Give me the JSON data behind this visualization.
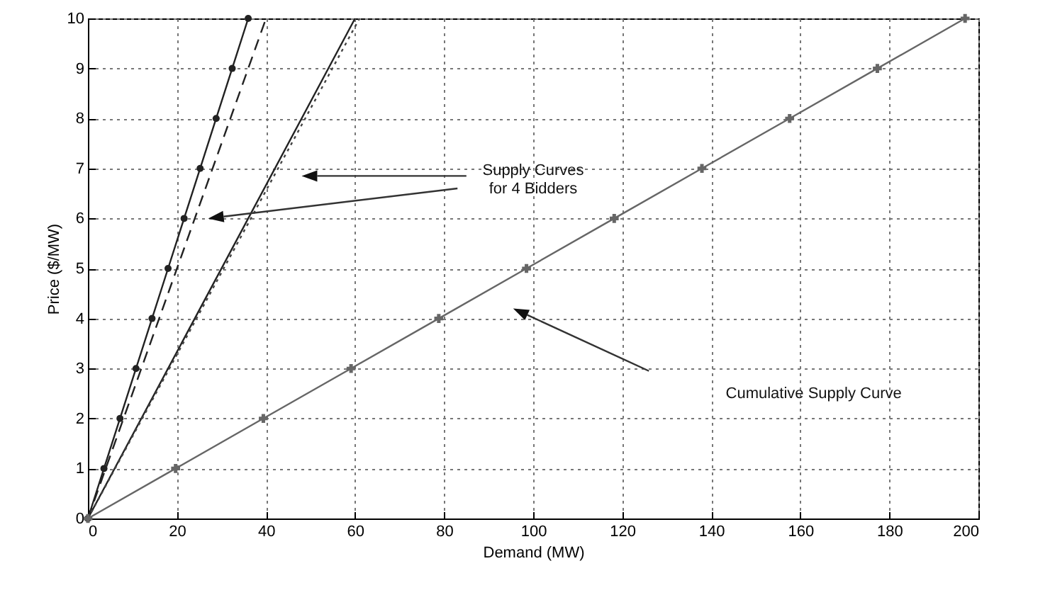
{
  "chart_data": {
    "type": "line",
    "xlabel": "Demand (MW)",
    "ylabel": "Price ($/MW)",
    "xlim": [
      0,
      200
    ],
    "xticks": [
      0,
      20,
      40,
      60,
      80,
      100,
      120,
      140,
      160,
      180,
      200
    ],
    "ylim": [
      0,
      10
    ],
    "yticks": [
      0,
      1,
      2,
      3,
      4,
      5,
      6,
      7,
      8,
      9,
      10
    ],
    "grid": true,
    "series": [
      {
        "color": "#222222",
        "marker": "circle",
        "line_style": "solid",
        "x": [
          0,
          3.6,
          7.2,
          10.8,
          14.4,
          18,
          21.6,
          25.2,
          28.8,
          32.4,
          36
        ],
        "values": [
          0,
          1,
          2,
          3,
          4,
          5,
          6,
          7,
          8,
          9,
          10
        ]
      },
      {
        "color": "#222222",
        "marker": "none",
        "line_style": "dashed",
        "x": [
          0,
          40
        ],
        "values": [
          0,
          10
        ]
      },
      {
        "color": "#222222",
        "marker": "none",
        "line_style": "solid",
        "x": [
          0,
          60
        ],
        "values": [
          0,
          10
        ]
      },
      {
        "color": "#444444",
        "marker": "none",
        "line_style": "dotted",
        "x": [
          0,
          61
        ],
        "values": [
          0,
          10
        ]
      },
      {
        "color": "#666666",
        "marker": "cross",
        "line_style": "solid",
        "x": [
          0,
          19.7,
          39.4,
          59.1,
          78.8,
          98.5,
          118.2,
          137.9,
          157.6,
          177.3,
          197
        ],
        "values": [
          0,
          1,
          2,
          3,
          4,
          5,
          6,
          7,
          8,
          9,
          10
        ]
      }
    ],
    "annotations": [
      "Supply Curves\nfor 4 Bidders",
      "Cumulative Supply Curve"
    ]
  }
}
